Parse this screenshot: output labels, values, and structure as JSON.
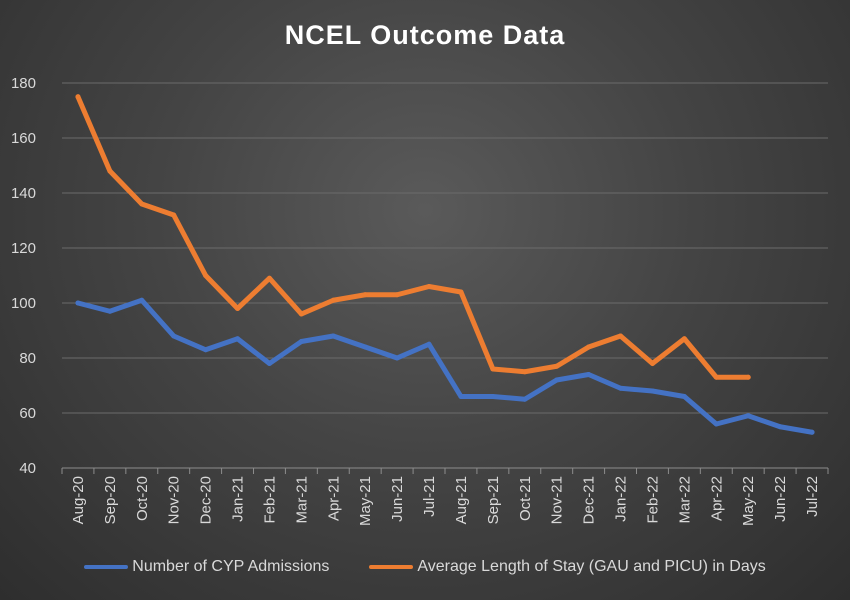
{
  "chart_data": {
    "type": "line",
    "title": "NCEL Outcome Data",
    "xlabel": "",
    "ylabel": "",
    "ylim": [
      40,
      180
    ],
    "yticks": [
      40,
      60,
      80,
      100,
      120,
      140,
      160,
      180
    ],
    "grid": true,
    "legend_position": "bottom",
    "categories": [
      "Aug-20",
      "Sep-20",
      "Oct-20",
      "Nov-20",
      "Dec-20",
      "Jan-21",
      "Feb-21",
      "Mar-21",
      "Apr-21",
      "May-21",
      "Jun-21",
      "Jul-21",
      "Aug-21",
      "Sep-21",
      "Oct-21",
      "Nov-21",
      "Dec-21",
      "Jan-22",
      "Feb-22",
      "Mar-22",
      "Apr-22",
      "May-22",
      "Jun-22",
      "Jul-22"
    ],
    "series": [
      {
        "name": "Number of CYP Admissions",
        "color": "#4472c4",
        "values": [
          100,
          97,
          101,
          88,
          83,
          87,
          78,
          86,
          88,
          84,
          80,
          85,
          66,
          66,
          65,
          72,
          74,
          69,
          68,
          66,
          56,
          59,
          55,
          53
        ]
      },
      {
        "name": "Average Length of Stay (GAU and PICU) in Days",
        "color": "#ed7d31",
        "values": [
          175,
          148,
          136,
          132,
          110,
          98,
          109,
          96,
          101,
          103,
          103,
          106,
          104,
          76,
          75,
          77,
          84,
          88,
          78,
          87,
          73,
          73,
          null,
          null
        ]
      }
    ]
  }
}
